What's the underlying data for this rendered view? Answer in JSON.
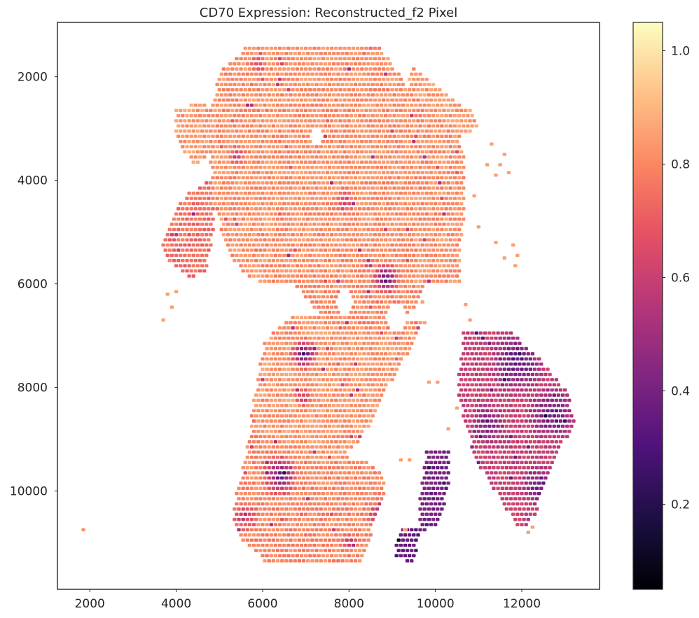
{
  "chart_data": {
    "type": "scatter",
    "title": "CD70 Expression: Reconstructed_f2 Pixel",
    "xlabel": "",
    "ylabel": "",
    "xlim": [
      1250,
      13800
    ],
    "ylim": [
      11900,
      950
    ],
    "y_inverted": true,
    "x_ticks": [
      2000,
      4000,
      6000,
      8000,
      10000,
      12000
    ],
    "x_tick_labels": [
      "2000",
      "4000",
      "6000",
      "8000",
      "10000",
      "12000"
    ],
    "y_ticks": [
      2000,
      4000,
      6000,
      8000,
      10000
    ],
    "y_tick_labels": [
      "2000",
      "4000",
      "6000",
      "8000",
      "10000"
    ],
    "grid": false,
    "colormap": "magma",
    "colorbar": {
      "range": [
        0.05,
        1.05
      ],
      "ticks": [
        0.2,
        0.4,
        0.6,
        0.8,
        1.0
      ],
      "tick_labels": [
        "0.2",
        "0.4",
        "0.6",
        "0.8",
        "1.0"
      ]
    },
    "spot_spacing": 100,
    "typical_value": 0.82,
    "tissue_regions": [
      {
        "polygon": [
          [
            5600,
            1450
          ],
          [
            8750,
            1450
          ],
          [
            9200,
            2000
          ],
          [
            9700,
            2500
          ],
          [
            10400,
            3000
          ],
          [
            10700,
            3500
          ],
          [
            10700,
            4500
          ],
          [
            10550,
            5500
          ],
          [
            10600,
            6050
          ],
          [
            8700,
            6000
          ],
          [
            7400,
            6100
          ],
          [
            6800,
            6050
          ],
          [
            6100,
            6000
          ],
          [
            5500,
            5800
          ],
          [
            5200,
            5300
          ],
          [
            4850,
            4500
          ],
          [
            4800,
            3800
          ],
          [
            4750,
            2600
          ],
          [
            5100,
            1800
          ]
        ],
        "value": 0.82
      },
      {
        "polygon": [
          [
            9450,
            1800
          ],
          [
            10400,
            2400
          ],
          [
            10900,
            2700
          ],
          [
            11000,
            3000
          ],
          [
            10500,
            3200
          ],
          [
            9700,
            2900
          ],
          [
            9350,
            2300
          ]
        ],
        "value": 0.84
      },
      {
        "polygon": [
          [
            4000,
            2600
          ],
          [
            4700,
            2500
          ],
          [
            4900,
            3200
          ],
          [
            4500,
            3800
          ],
          [
            4050,
            3300
          ],
          [
            3950,
            2900
          ]
        ],
        "value": 0.84
      },
      {
        "polygon": [
          [
            4200,
            4300
          ],
          [
            4900,
            3900
          ],
          [
            4900,
            4800
          ],
          [
            4700,
            5800
          ],
          [
            4300,
            5900
          ],
          [
            4000,
            5700
          ],
          [
            3650,
            5400
          ],
          [
            3800,
            4900
          ]
        ],
        "value": 0.74
      },
      {
        "polygon": [
          [
            6800,
            6000
          ],
          [
            9800,
            6050
          ],
          [
            9200,
            6900
          ],
          [
            8600,
            6800
          ],
          [
            7700,
            6700
          ],
          [
            7200,
            6500
          ]
        ],
        "value": 0.8
      },
      {
        "polygon": [
          [
            6700,
            6600
          ],
          [
            9800,
            6700
          ],
          [
            9400,
            7300
          ],
          [
            8900,
            8000
          ],
          [
            8600,
            8600
          ],
          [
            8100,
            9200
          ],
          [
            7400,
            9500
          ],
          [
            6800,
            9400
          ],
          [
            6000,
            9000
          ],
          [
            5700,
            8700
          ],
          [
            5850,
            8000
          ],
          [
            6050,
            7100
          ]
        ],
        "value": 0.83
      },
      {
        "polygon": [
          [
            5750,
            8700
          ],
          [
            6400,
            8900
          ],
          [
            7600,
            9300
          ],
          [
            8400,
            9400
          ],
          [
            8900,
            9800
          ],
          [
            8600,
            10600
          ],
          [
            8300,
            11400
          ],
          [
            6100,
            11400
          ],
          [
            5450,
            10900
          ],
          [
            5300,
            10400
          ],
          [
            5500,
            9700
          ]
        ],
        "value": 0.8
      },
      {
        "polygon": [
          [
            10650,
            6900
          ],
          [
            11700,
            6900
          ],
          [
            12400,
            7400
          ],
          [
            13000,
            8000
          ],
          [
            13250,
            8600
          ],
          [
            12800,
            9400
          ],
          [
            12500,
            10000
          ],
          [
            12300,
            10500
          ],
          [
            12000,
            10800
          ],
          [
            11600,
            10300
          ],
          [
            11000,
            9500
          ],
          [
            10700,
            8800
          ],
          [
            10500,
            8000
          ]
        ],
        "value": 0.6
      },
      {
        "polygon": [
          [
            9800,
            9250
          ],
          [
            10350,
            9250
          ],
          [
            10300,
            10000
          ],
          [
            10050,
            10700
          ],
          [
            9650,
            10800
          ],
          [
            9600,
            10200
          ]
        ],
        "value": 0.4
      },
      {
        "polygon": [
          [
            9250,
            10700
          ],
          [
            9700,
            10700
          ],
          [
            9500,
            11400
          ],
          [
            9100,
            11300
          ],
          [
            9050,
            11000
          ]
        ],
        "value": 0.35
      }
    ],
    "low_expression_clusters": [
      {
        "center": [
          6950,
          7350
        ],
        "radius": 350,
        "value": 0.28
      },
      {
        "center": [
          6400,
          9700
        ],
        "radius": 450,
        "value": 0.32
      },
      {
        "center": [
          8850,
          5900
        ],
        "radius": 350,
        "value": 0.3
      },
      {
        "center": [
          11900,
          7500
        ],
        "radius": 700,
        "value": 0.3
      },
      {
        "center": [
          12700,
          8500
        ],
        "radius": 600,
        "value": 0.32
      },
      {
        "center": [
          12400,
          9900
        ],
        "radius": 450,
        "value": 0.3
      },
      {
        "center": [
          11200,
          8700
        ],
        "radius": 450,
        "value": 0.35
      },
      {
        "center": [
          8700,
          10500
        ],
        "radius": 300,
        "value": 0.4
      },
      {
        "center": [
          5600,
          10500
        ],
        "radius": 350,
        "value": 0.55
      },
      {
        "center": [
          7900,
          4400
        ],
        "radius": 300,
        "value": 0.6
      },
      {
        "center": [
          8000,
          11000
        ],
        "radius": 200,
        "value": 0.5
      },
      {
        "center": [
          5900,
          1750
        ],
        "radius": 200,
        "value": 0.55
      },
      {
        "center": [
          5400,
          3500
        ],
        "radius": 250,
        "value": 0.6
      },
      {
        "center": [
          6950,
          8200
        ],
        "radius": 250,
        "value": 0.55
      }
    ],
    "tissue_holes": [
      {
        "center": [
          7250,
          3150
        ],
        "radius": 180
      },
      {
        "center": [
          9900,
          7400
        ],
        "radius": 350
      },
      {
        "center": [
          9100,
          6650
        ],
        "radius": 250
      },
      {
        "center": [
          10150,
          8400
        ],
        "radius": 350
      },
      {
        "center": [
          7900,
          6350
        ],
        "radius": 220
      }
    ],
    "scattered_points": [
      {
        "x": 1850,
        "y": 10750,
        "value": 0.82
      },
      {
        "x": 3800,
        "y": 6200,
        "value": 0.85
      },
      {
        "x": 3700,
        "y": 6700,
        "value": 0.85
      },
      {
        "x": 3900,
        "y": 6450,
        "value": 0.85
      },
      {
        "x": 4000,
        "y": 6150,
        "value": 0.85
      },
      {
        "x": 11500,
        "y": 3700,
        "value": 0.85
      },
      {
        "x": 11700,
        "y": 3850,
        "value": 0.85
      },
      {
        "x": 11600,
        "y": 3500,
        "value": 0.85
      },
      {
        "x": 11400,
        "y": 3900,
        "value": 0.85
      },
      {
        "x": 11200,
        "y": 3700,
        "value": 0.85
      },
      {
        "x": 11800,
        "y": 5250,
        "value": 0.85
      },
      {
        "x": 11900,
        "y": 5450,
        "value": 0.85
      },
      {
        "x": 11600,
        "y": 5500,
        "value": 0.85
      },
      {
        "x": 11400,
        "y": 5200,
        "value": 0.85
      },
      {
        "x": 11850,
        "y": 5650,
        "value": 0.85
      },
      {
        "x": 11000,
        "y": 4900,
        "value": 0.85
      },
      {
        "x": 11300,
        "y": 3300,
        "value": 0.85
      },
      {
        "x": 10900,
        "y": 4300,
        "value": 0.85
      },
      {
        "x": 10700,
        "y": 6400,
        "value": 0.85
      },
      {
        "x": 10800,
        "y": 6700,
        "value": 0.85
      },
      {
        "x": 9400,
        "y": 9400,
        "value": 0.85
      },
      {
        "x": 9200,
        "y": 9400,
        "value": 0.85
      },
      {
        "x": 9300,
        "y": 10750,
        "value": 0.85
      },
      {
        "x": 9700,
        "y": 6350,
        "value": 0.85
      },
      {
        "x": 10300,
        "y": 8800,
        "value": 0.85
      },
      {
        "x": 10500,
        "y": 8400,
        "value": 0.85
      },
      {
        "x": 10050,
        "y": 7900,
        "value": 0.85
      },
      {
        "x": 9850,
        "y": 7900,
        "value": 0.85
      },
      {
        "x": 12150,
        "y": 10800,
        "value": 0.85
      },
      {
        "x": 12250,
        "y": 10700,
        "value": 0.85
      }
    ]
  }
}
